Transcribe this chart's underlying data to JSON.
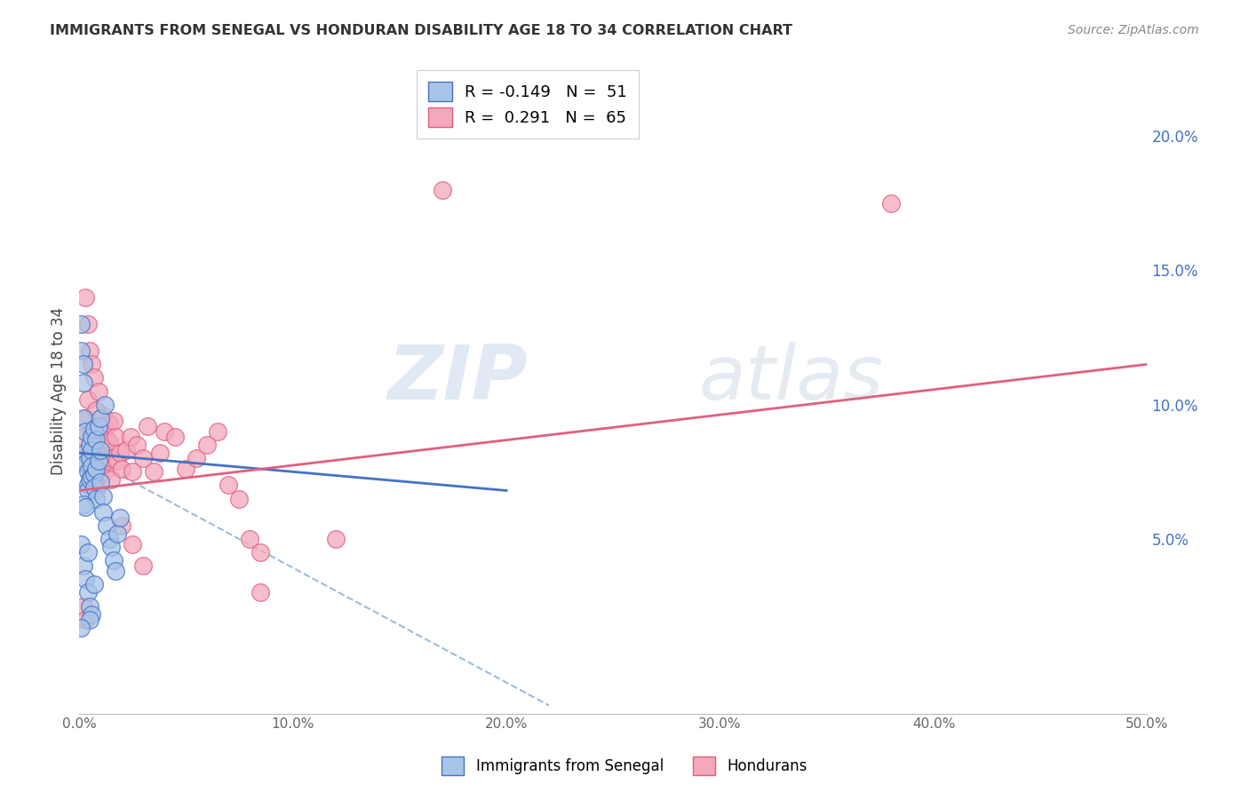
{
  "title": "IMMIGRANTS FROM SENEGAL VS HONDURAN DISABILITY AGE 18 TO 34 CORRELATION CHART",
  "source": "Source: ZipAtlas.com",
  "ylabel": "Disability Age 18 to 34",
  "xlim": [
    0,
    0.5
  ],
  "ylim": [
    -0.015,
    0.225
  ],
  "xticks": [
    0.0,
    0.1,
    0.2,
    0.3,
    0.4,
    0.5
  ],
  "xtick_labels": [
    "0.0%",
    "10.0%",
    "20.0%",
    "30.0%",
    "40.0%",
    "50.0%"
  ],
  "yticks_right": [
    0.05,
    0.1,
    0.15,
    0.2
  ],
  "ytick_right_labels": [
    "5.0%",
    "10.0%",
    "15.0%",
    "20.0%"
  ],
  "legend_blue_r": "R = -0.149",
  "legend_blue_n": "N =  51",
  "legend_pink_r": "R =  0.291",
  "legend_pink_n": "N =  65",
  "blue_fill": "#a8c4e8",
  "blue_edge": "#4472c4",
  "pink_fill": "#f4a8bc",
  "pink_edge": "#e06080",
  "blue_line_color": "#4472c4",
  "pink_line_color": "#e06080",
  "dashed_line_color": "#88aacc",
  "grid_color": "#e8e8e8",
  "right_axis_color": "#4472c4",
  "watermark_zip": "ZIP",
  "watermark_atlas": "atlas",
  "blue_scatter_x": [
    0.001,
    0.001,
    0.002,
    0.002,
    0.002,
    0.003,
    0.003,
    0.003,
    0.004,
    0.004,
    0.004,
    0.005,
    0.005,
    0.005,
    0.006,
    0.006,
    0.006,
    0.006,
    0.007,
    0.007,
    0.007,
    0.008,
    0.008,
    0.008,
    0.009,
    0.009,
    0.01,
    0.01,
    0.01,
    0.011,
    0.011,
    0.012,
    0.013,
    0.014,
    0.015,
    0.016,
    0.017,
    0.018,
    0.019,
    0.001,
    0.002,
    0.003,
    0.004,
    0.005,
    0.006,
    0.007,
    0.002,
    0.003,
    0.004,
    0.005,
    0.001
  ],
  "blue_scatter_y": [
    0.13,
    0.12,
    0.115,
    0.108,
    0.095,
    0.09,
    0.082,
    0.078,
    0.075,
    0.07,
    0.068,
    0.085,
    0.08,
    0.072,
    0.088,
    0.083,
    0.077,
    0.073,
    0.091,
    0.074,
    0.069,
    0.087,
    0.076,
    0.065,
    0.079,
    0.092,
    0.095,
    0.083,
    0.071,
    0.066,
    0.06,
    0.1,
    0.055,
    0.05,
    0.047,
    0.042,
    0.038,
    0.052,
    0.058,
    0.048,
    0.04,
    0.035,
    0.03,
    0.025,
    0.022,
    0.033,
    0.063,
    0.062,
    0.045,
    0.02,
    0.017
  ],
  "pink_scatter_x": [
    0.001,
    0.002,
    0.003,
    0.004,
    0.005,
    0.005,
    0.006,
    0.006,
    0.007,
    0.007,
    0.008,
    0.008,
    0.009,
    0.009,
    0.01,
    0.01,
    0.011,
    0.011,
    0.012,
    0.012,
    0.013,
    0.013,
    0.014,
    0.014,
    0.015,
    0.015,
    0.016,
    0.017,
    0.018,
    0.019,
    0.02,
    0.022,
    0.024,
    0.025,
    0.027,
    0.03,
    0.032,
    0.035,
    0.038,
    0.04,
    0.045,
    0.05,
    0.055,
    0.06,
    0.065,
    0.07,
    0.075,
    0.08,
    0.085,
    0.003,
    0.004,
    0.005,
    0.006,
    0.007,
    0.008,
    0.009,
    0.02,
    0.025,
    0.03,
    0.12,
    0.085,
    0.002,
    0.003,
    0.17,
    0.38
  ],
  "pink_scatter_y": [
    0.08,
    0.088,
    0.095,
    0.102,
    0.082,
    0.076,
    0.09,
    0.073,
    0.085,
    0.078,
    0.092,
    0.068,
    0.083,
    0.079,
    0.088,
    0.074,
    0.096,
    0.083,
    0.091,
    0.075,
    0.087,
    0.079,
    0.093,
    0.086,
    0.08,
    0.072,
    0.094,
    0.088,
    0.079,
    0.082,
    0.076,
    0.083,
    0.088,
    0.075,
    0.085,
    0.08,
    0.092,
    0.075,
    0.082,
    0.09,
    0.088,
    0.076,
    0.08,
    0.085,
    0.09,
    0.07,
    0.065,
    0.05,
    0.045,
    0.14,
    0.13,
    0.12,
    0.115,
    0.11,
    0.098,
    0.105,
    0.055,
    0.048,
    0.04,
    0.05,
    0.03,
    0.025,
    0.02,
    0.18,
    0.175
  ],
  "blue_trend_x0": 0.0,
  "blue_trend_x1": 0.2,
  "blue_trend_y0": 0.082,
  "blue_trend_y1": 0.068,
  "pink_trend_x0": 0.0,
  "pink_trend_x1": 0.5,
  "pink_trend_y0": 0.068,
  "pink_trend_y1": 0.115,
  "dashed_trend_x0": 0.0,
  "dashed_trend_x1": 0.22,
  "dashed_trend_y0": 0.082,
  "dashed_trend_y1": -0.012
}
